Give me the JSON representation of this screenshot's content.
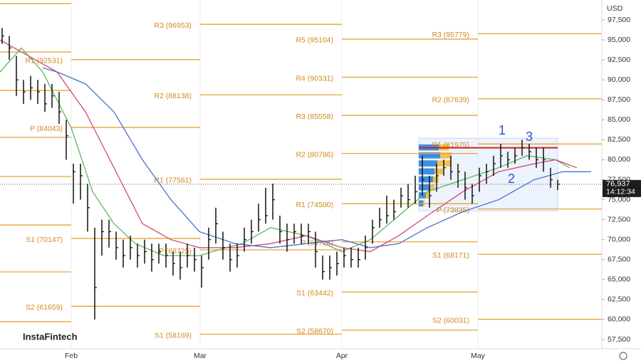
{
  "chart_data": {
    "type": "ohlc",
    "currency": "USD",
    "watermark": "InstaFintech",
    "xlim": [
      0,
      84.5
    ],
    "xticks": [
      {
        "value": 10,
        "label": "Feb"
      },
      {
        "value": 28.1,
        "label": "Mar"
      },
      {
        "value": 48,
        "label": "Apr"
      },
      {
        "value": 67.1,
        "label": "May"
      }
    ],
    "ylim": [
      56340,
      100000
    ],
    "yticks": [
      {
        "value": 97500,
        "label": "97,500"
      },
      {
        "value": 95000,
        "label": "95,000"
      },
      {
        "value": 92500,
        "label": "92,500"
      },
      {
        "value": 90000,
        "label": "90,000"
      },
      {
        "value": 87500,
        "label": "87,500"
      },
      {
        "value": 85000,
        "label": "85,000"
      },
      {
        "value": 82500,
        "label": "82,500"
      },
      {
        "value": 80000,
        "label": "80,000"
      },
      {
        "value": 77500,
        "label": "77,500"
      },
      {
        "value": 75000,
        "label": "75,000"
      },
      {
        "value": 72500,
        "label": "72,500"
      },
      {
        "value": 70000,
        "label": "70,000"
      },
      {
        "value": 67500,
        "label": "67,500"
      },
      {
        "value": 65000,
        "label": "65,000"
      },
      {
        "value": 62500,
        "label": "62,500"
      },
      {
        "value": 60000,
        "label": "60,000"
      },
      {
        "value": 57500,
        "label": "57,500"
      }
    ],
    "high": [
      96500,
      95500,
      93000,
      90000,
      90500,
      90000,
      89500,
      89500,
      88500,
      85000,
      79500,
      79500,
      77000,
      71500,
      72500,
      72500,
      71000,
      70000,
      70500,
      69500,
      70000,
      69500,
      69500,
      69500,
      68500,
      68500,
      69500,
      69000,
      68000,
      71500,
      74000,
      71000,
      69500,
      69500,
      71500,
      72500,
      74500,
      76500,
      77000,
      73000,
      72000,
      72000,
      72000,
      72000,
      71000,
      68000,
      68000,
      68500,
      69000,
      69000,
      69000,
      70500,
      72500,
      74000,
      75500,
      75000,
      76500,
      77000,
      78000,
      80500,
      78000,
      79500,
      80000,
      80500,
      79500,
      78500,
      77000,
      79000,
      79500,
      80500,
      82000,
      81000,
      81500,
      82500,
      82000,
      81500,
      81500,
      79000,
      77500
    ],
    "low": [
      94500,
      92500,
      88000,
      87000,
      87500,
      87000,
      86000,
      86500,
      84500,
      80000,
      74500,
      75000,
      71000,
      60000,
      68000,
      69000,
      67500,
      66500,
      67500,
      66500,
      67000,
      66000,
      67000,
      66500,
      65500,
      65000,
      66500,
      66000,
      64000,
      67500,
      69500,
      67500,
      66000,
      66500,
      68500,
      69500,
      71000,
      72000,
      72500,
      69500,
      68500,
      69500,
      69500,
      69500,
      66500,
      65000,
      65000,
      65500,
      66500,
      66500,
      66500,
      67500,
      69500,
      71500,
      72000,
      72500,
      74000,
      74000,
      74500,
      75500,
      74000,
      76000,
      78000,
      77500,
      76500,
      75000,
      74500,
      76000,
      77000,
      78000,
      79000,
      79000,
      79500,
      80500,
      80000,
      79000,
      78500,
      76500,
      76200
    ],
    "close": [
      95500,
      94000,
      90000,
      88500,
      89000,
      88500,
      87000,
      88000,
      86000,
      83000,
      78500,
      78000,
      74000,
      64000,
      71000,
      71000,
      69000,
      68000,
      69000,
      68000,
      68500,
      67500,
      68500,
      68000,
      67000,
      66500,
      68000,
      67500,
      66500,
      70000,
      72000,
      69000,
      67500,
      68000,
      70000,
      71000,
      72500,
      73000,
      75000,
      71000,
      70000,
      71000,
      70500,
      71000,
      68500,
      66000,
      66500,
      67000,
      68000,
      67500,
      67500,
      69000,
      71500,
      72500,
      73000,
      73500,
      75500,
      75000,
      76000,
      77500,
      75500,
      78000,
      79000,
      78500,
      78500,
      76500,
      75500,
      78000,
      78500,
      79500,
      80500,
      80000,
      80500,
      81500,
      81000,
      80000,
      80000,
      77500,
      76937
    ],
    "averages": [
      {
        "color": "#5cb85c",
        "x": [
          0,
          3,
          6,
          10,
          13,
          16,
          19,
          23,
          28,
          31,
          34,
          38,
          43,
          48,
          52,
          56,
          60,
          65,
          70,
          74,
          78,
          80
        ],
        "values": [
          91000,
          94000,
          91000,
          84000,
          76000,
          72000,
          69500,
          68000,
          68000,
          68800,
          69500,
          71500,
          70500,
          68500,
          70000,
          73000,
          76000,
          77500,
          79000,
          80500,
          80000,
          79000
        ]
      },
      {
        "color": "#d04a78",
        "x": [
          0,
          4,
          8,
          12,
          16,
          20,
          24,
          28,
          33,
          38,
          43,
          48,
          52,
          56,
          60,
          65,
          70,
          75,
          78,
          81
        ],
        "values": [
          95000,
          93000,
          91000,
          86000,
          79000,
          72000,
          70000,
          69000,
          69000,
          69500,
          70500,
          69000,
          68500,
          70500,
          73000,
          76000,
          78500,
          79500,
          80000,
          79000
        ]
      },
      {
        "color": "#4a72d0",
        "x": [
          6,
          8,
          12,
          16,
          20,
          24,
          28,
          33,
          38,
          43,
          48,
          52,
          56,
          60,
          65,
          70,
          75,
          79,
          83
        ],
        "values": [
          91500,
          91000,
          89500,
          86000,
          80000,
          75000,
          71000,
          69500,
          69000,
          69500,
          70000,
          69000,
          69500,
          71500,
          73500,
          75000,
          77500,
          78500,
          78500
        ]
      }
    ],
    "pivots": [
      {
        "levels": [
          {
            "value": 99549
          },
          {
            "value": 93491
          },
          {
            "value": 88680
          },
          {
            "value": 82800
          },
          {
            "value": 77900
          },
          {
            "value": 71840
          },
          {
            "value": 65960
          },
          {
            "value": 59730
          }
        ]
      },
      {
        "levels": [
          {
            "label": "R1 (92531)",
            "value": 92531
          },
          {
            "label": "P (84043)",
            "value": 84043
          },
          {
            "label": "S1 (70147)",
            "value": 70147
          },
          {
            "label": "S2 (61659)",
            "value": 61659
          }
        ]
      },
      {
        "levels": [
          {
            "label": "R3 (96953)",
            "value": 96953
          },
          {
            "label": "R2 (88138)",
            "value": 88138
          },
          {
            "label": "R1 (77561)",
            "value": 77561
          },
          {
            "label": "P (68725)",
            "value": 68725
          },
          {
            "label": "S1 (58169)",
            "value": 58169
          }
        ]
      },
      {
        "levels": [
          {
            "label": "R5 (95104)",
            "value": 95104
          },
          {
            "label": "R4 (90331)",
            "value": 90331
          },
          {
            "label": "R3 (85558)",
            "value": 85558
          },
          {
            "label": "R2 (80786)",
            "value": 80786
          },
          {
            "label": "R1 (74500)",
            "value": 74500
          },
          {
            "label": "P (69728)",
            "value": 69728
          },
          {
            "label": "S1 (63442)",
            "value": 63442
          },
          {
            "label": "S2 (58670)",
            "value": 58670
          }
        ]
      },
      {
        "levels": [
          {
            "label": "R3 (95779)",
            "value": 95779
          },
          {
            "label": "R2 (87639)",
            "value": 87639
          },
          {
            "label": "R1 (81975)",
            "value": 81975
          },
          {
            "label": "P (73835)",
            "value": 73835
          },
          {
            "label": "S1 (68171)",
            "value": 68171
          },
          {
            "label": "S2 (60031)",
            "value": 60031
          }
        ]
      }
    ],
    "range_box": {
      "top": 82700,
      "bottom": 73600
    },
    "resistance": 81500,
    "volume_profile": {
      "prices": [
        81500,
        80500,
        79500,
        78500,
        77500,
        76500,
        75500,
        74500
      ],
      "sell": [
        28,
        30,
        26,
        22,
        20,
        16,
        10,
        6
      ],
      "buy": [
        14,
        16,
        20,
        12,
        8,
        6,
        4,
        2
      ]
    },
    "annotations": [
      "1",
      "2",
      "3"
    ],
    "last_price": {
      "value": 76937,
      "label": "76,937"
    },
    "countdown": "14:12:34"
  }
}
